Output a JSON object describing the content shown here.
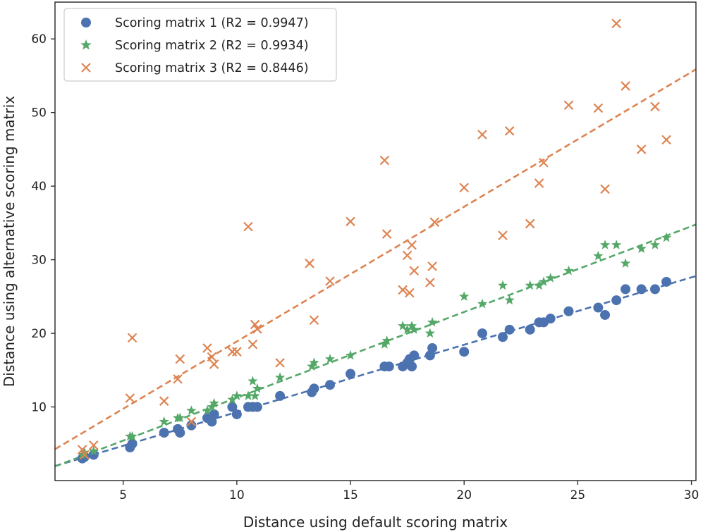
{
  "chart_data": {
    "type": "scatter",
    "xlabel": "Distance using default scoring matrix",
    "ylabel": "Distance using alternative scoring matrix",
    "xlim": [
      2,
      30.2
    ],
    "ylim": [
      0,
      65
    ],
    "xticks": [
      5,
      10,
      15,
      20,
      25,
      30
    ],
    "yticks": [
      10,
      20,
      30,
      40,
      50,
      60
    ],
    "grid": false,
    "legend_position": "top-left",
    "series": [
      {
        "name": "Scoring matrix 1 (R2 = 0.9947)",
        "marker": "circle",
        "color": "#4c72b0",
        "fit": {
          "slope": 0.915,
          "intercept": 0.15
        },
        "x": [
          3.2,
          3.3,
          3.7,
          5.3,
          5.4,
          6.8,
          7.4,
          7.5,
          8.0,
          8.7,
          8.9,
          9.0,
          9.8,
          10.0,
          10.5,
          10.7,
          10.9,
          11.9,
          13.3,
          13.4,
          14.1,
          15.0,
          16.5,
          16.7,
          17.3,
          17.5,
          17.6,
          17.7,
          17.8,
          18.5,
          18.6,
          20.0,
          20.8,
          21.7,
          22.0,
          22.9,
          23.3,
          23.5,
          23.8,
          24.6,
          25.9,
          26.2,
          26.7,
          27.1,
          27.8,
          28.4,
          28.9
        ],
        "y": [
          3.0,
          3.2,
          3.5,
          4.5,
          5.0,
          6.5,
          7.0,
          6.5,
          7.5,
          8.5,
          8.0,
          9.0,
          10.0,
          9.0,
          10.0,
          10.0,
          10.0,
          11.5,
          12.0,
          12.5,
          13.0,
          14.5,
          15.5,
          15.5,
          15.5,
          16.0,
          16.5,
          15.5,
          17.0,
          17.0,
          18.0,
          17.5,
          20.0,
          19.5,
          20.5,
          20.5,
          21.5,
          21.5,
          22.0,
          23.0,
          23.5,
          22.5,
          24.5,
          26.0,
          26.0,
          26.0,
          27.0
        ]
      },
      {
        "name": "Scoring matrix 2 (R2 = 0.9934)",
        "marker": "star",
        "color": "#55a868",
        "fit": {
          "slope": 1.165,
          "intercept": -0.4
        },
        "x": [
          3.2,
          3.3,
          3.7,
          5.3,
          5.4,
          6.8,
          7.4,
          7.5,
          8.0,
          8.7,
          8.9,
          9.0,
          9.8,
          10.0,
          10.5,
          10.7,
          10.8,
          10.9,
          11.9,
          13.3,
          13.4,
          14.1,
          15.0,
          16.5,
          16.6,
          17.3,
          17.5,
          17.7,
          17.8,
          18.5,
          18.6,
          20.0,
          20.8,
          21.7,
          22.0,
          22.9,
          23.3,
          23.5,
          23.8,
          24.6,
          25.9,
          26.2,
          26.7,
          27.1,
          27.8,
          28.4,
          28.9
        ],
        "y": [
          3.5,
          3.8,
          4.0,
          6.0,
          6.0,
          8.0,
          8.5,
          8.5,
          9.5,
          9.5,
          10.0,
          10.5,
          11.0,
          11.5,
          11.5,
          13.5,
          11.5,
          12.5,
          14.0,
          15.5,
          16.0,
          16.5,
          17.0,
          18.5,
          19.0,
          21.0,
          20.5,
          21.0,
          20.5,
          20.0,
          21.5,
          25.0,
          24.0,
          26.5,
          24.5,
          26.5,
          26.5,
          27.0,
          27.5,
          28.5,
          30.5,
          32.0,
          32.0,
          29.5,
          31.5,
          32.0,
          33.0
        ]
      },
      {
        "name": "Scoring matrix 3 (R2 = 0.8446)",
        "marker": "x",
        "color": "#dd8452",
        "fit": {
          "slope": 1.83,
          "intercept": 0.6
        },
        "x": [
          3.2,
          3.3,
          3.7,
          5.3,
          5.4,
          6.8,
          7.4,
          7.5,
          8.0,
          8.7,
          8.9,
          9.0,
          9.8,
          10.0,
          10.5,
          10.7,
          10.8,
          10.9,
          11.9,
          13.2,
          13.4,
          14.1,
          15.0,
          16.5,
          16.6,
          17.3,
          17.5,
          17.6,
          17.7,
          17.8,
          18.5,
          18.6,
          18.7,
          20.0,
          20.8,
          21.7,
          22.0,
          22.9,
          23.3,
          23.5,
          24.6,
          25.9,
          26.2,
          26.7,
          27.1,
          27.8,
          28.4,
          28.9
        ],
        "y": [
          4.2,
          3.5,
          4.8,
          11.2,
          19.4,
          10.8,
          13.8,
          16.5,
          8.0,
          18.0,
          16.8,
          15.8,
          17.5,
          17.5,
          34.5,
          18.5,
          21.2,
          20.6,
          16.0,
          29.5,
          21.8,
          27.1,
          35.2,
          43.5,
          33.5,
          25.9,
          30.6,
          25.5,
          32.0,
          28.5,
          26.9,
          29.1,
          35.1,
          39.8,
          47.0,
          33.3,
          47.5,
          34.9,
          40.4,
          43.2,
          51.0,
          50.6,
          39.6,
          62.1,
          53.6,
          45.0,
          50.8,
          46.3
        ]
      }
    ]
  }
}
